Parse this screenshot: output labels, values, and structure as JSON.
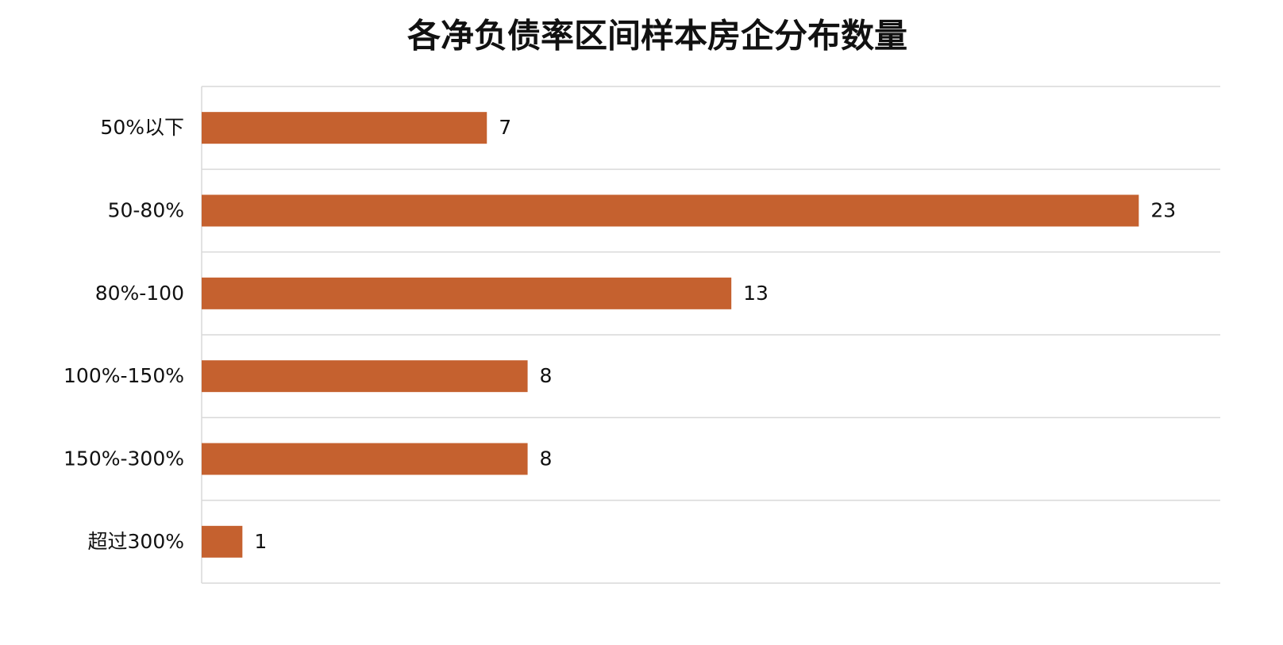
{
  "chart_data": {
    "type": "barh",
    "title": "各净负债率区间样本房企分布数量",
    "categories": [
      "50%以下",
      "50-80%",
      "80%-100",
      "100%-150%",
      "150%-300%",
      "超过300%"
    ],
    "values": [
      7,
      23,
      13,
      8,
      8,
      1
    ],
    "color": "#c5612f",
    "xlim": [
      0,
      25
    ]
  }
}
